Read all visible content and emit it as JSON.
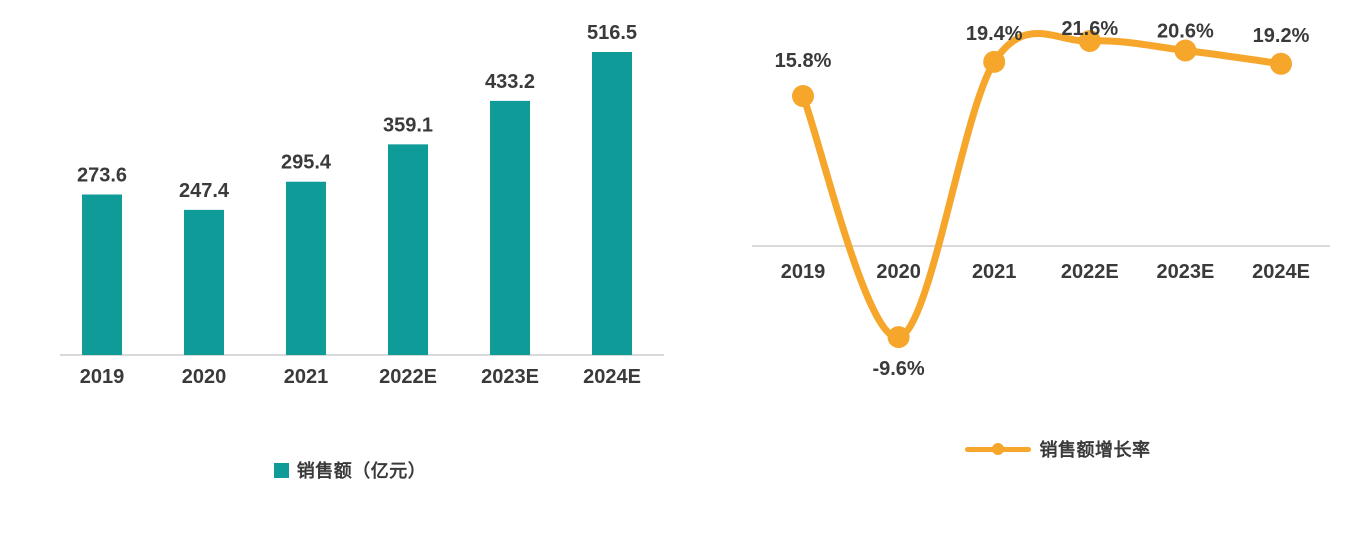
{
  "page": {
    "background": "#ffffff",
    "text_color": "#3a3a3a",
    "axis_line_color": "#d9d9d9"
  },
  "chart_data": [
    {
      "type": "bar",
      "title": "",
      "categories": [
        "2019",
        "2020",
        "2021",
        "2022E",
        "2023E",
        "2024E"
      ],
      "values": [
        273.6,
        247.4,
        295.4,
        359.1,
        433.2,
        516.5
      ],
      "data_labels": [
        "273.6",
        "247.4",
        "295.4",
        "359.1",
        "433.2",
        "516.5"
      ],
      "series_name": "销售额（亿元）",
      "color": "#0f9b97",
      "xlabel": "",
      "ylabel": "",
      "ylim": [
        0,
        600
      ],
      "grid": false,
      "y_axis_visible": false,
      "legend_position": "bottom"
    },
    {
      "type": "line",
      "title": "",
      "categories": [
        "2019",
        "2020",
        "2021",
        "2022E",
        "2023E",
        "2024E"
      ],
      "values": [
        15.8,
        -9.6,
        19.4,
        21.6,
        20.6,
        19.2
      ],
      "data_labels": [
        "15.8%",
        "-9.6%",
        "19.4%",
        "21.6%",
        "20.6%",
        "19.2%"
      ],
      "series_name": "销售额增长率",
      "color": "#f5a62b",
      "smooth": true,
      "markers": true,
      "xlabel": "",
      "ylabel": "",
      "ylim": [
        -16,
        26
      ],
      "grid": false,
      "y_axis_visible": false,
      "zero_axis_visible": true,
      "legend_position": "bottom"
    }
  ]
}
